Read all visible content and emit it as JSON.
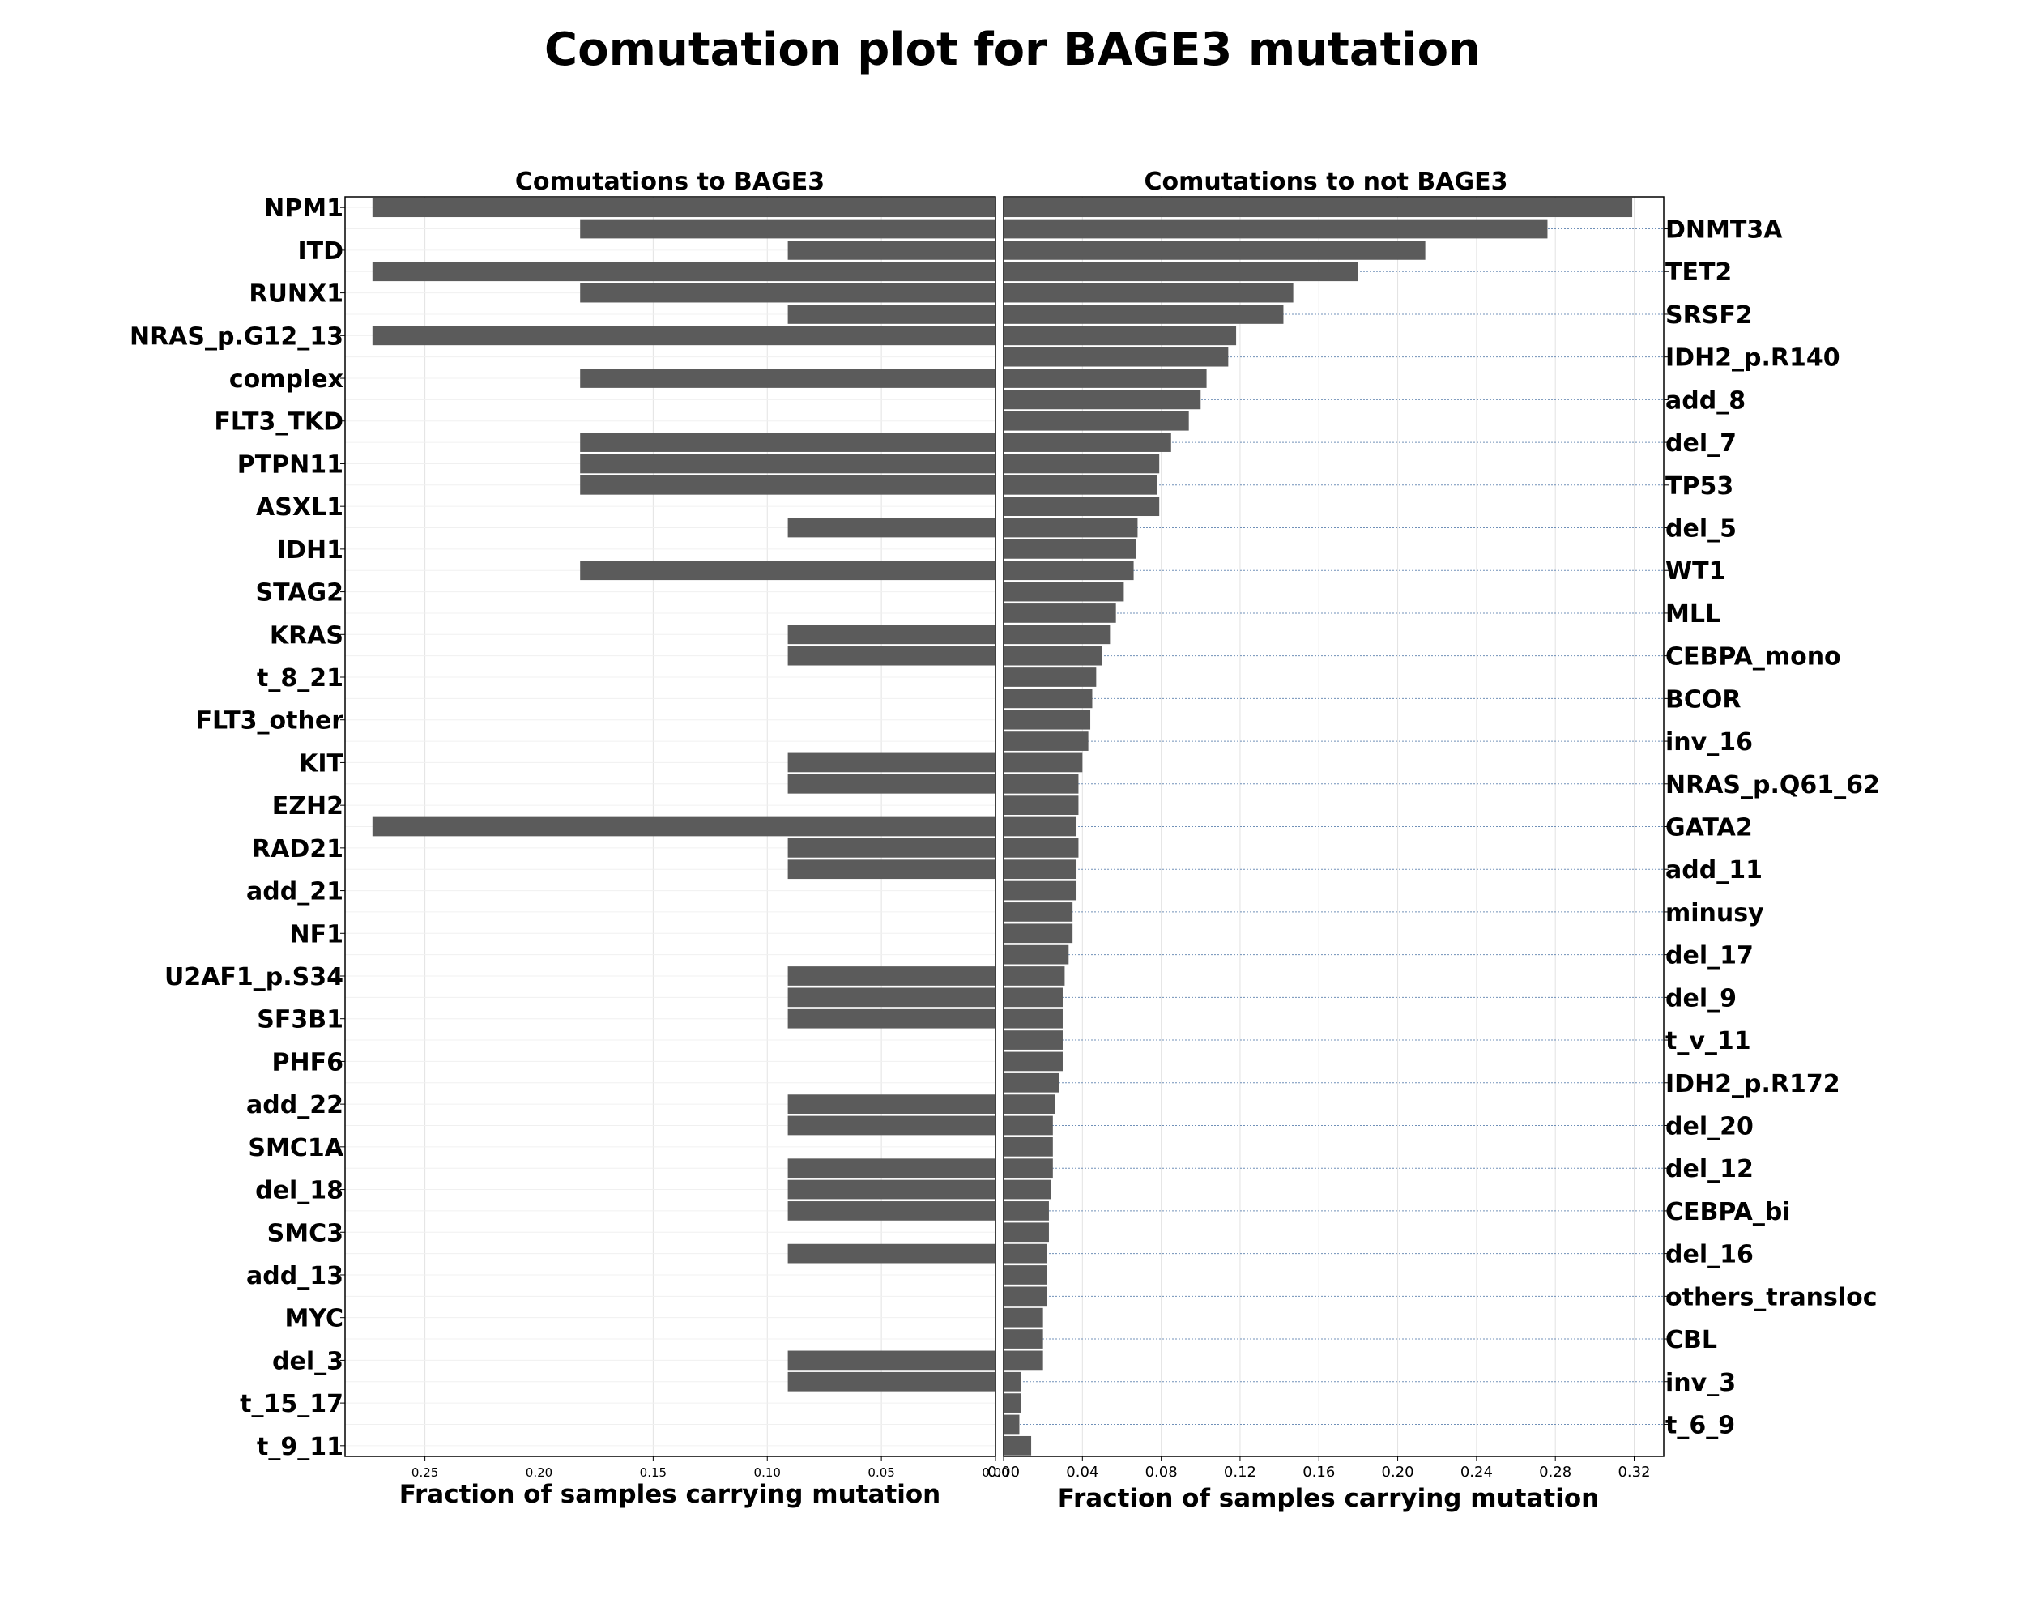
{
  "title": "Comutation plot for BAGE3 mutation",
  "chart_data": {
    "type": "bar",
    "orientation": "horizontal",
    "panels": [
      {
        "title": "Comutations to BAGE3",
        "xlabel": "Fraction of samples carrying mutation",
        "xlim": [
          0.285,
          0
        ],
        "xticks": [
          "0.25",
          "0.20",
          "0.15",
          "0.10",
          "0.05",
          "0.00"
        ],
        "grid": true
      },
      {
        "title": "Comutations to not BAGE3",
        "xlabel": "Fraction of samples carrying mutation",
        "xlim": [
          0,
          0.335
        ],
        "xticks": [
          "0.00",
          "0.04",
          "0.08",
          "0.12",
          "0.16",
          "0.20",
          "0.24",
          "0.28",
          "0.32"
        ],
        "grid": true
      }
    ],
    "categories": [
      "NPM1",
      "DNMT3A",
      "ITD",
      "TET2",
      "RUNX1",
      "SRSF2",
      "NRAS_p.G12_13",
      "IDH2_p.R140",
      "complex",
      "add_8",
      "FLT3_TKD",
      "del_7",
      "PTPN11",
      "TP53",
      "ASXL1",
      "del_5",
      "IDH1",
      "WT1",
      "STAG2",
      "MLL",
      "KRAS",
      "CEBPA_mono",
      "t_8_21",
      "BCOR",
      "FLT3_other",
      "inv_16",
      "KIT",
      "NRAS_p.Q61_62",
      "EZH2",
      "GATA2",
      "RAD21",
      "add_11",
      "add_21",
      "minusy",
      "NF1",
      "del_17",
      "U2AF1_p.S34",
      "del_9",
      "SF3B1",
      "t_v_11",
      "PHF6",
      "IDH2_p.R172",
      "add_22",
      "del_20",
      "SMC1A",
      "del_12",
      "del_18",
      "CEBPA_bi",
      "SMC3",
      "del_16",
      "add_13",
      "others_transloc",
      "MYC",
      "CBL",
      "del_3",
      "inv_3",
      "t_15_17",
      "t_6_9",
      "t_9_11"
    ],
    "left_axis_labels": [
      "NPM1",
      "ITD",
      "RUNX1",
      "NRAS_p.G12_13",
      "complex",
      "FLT3_TKD",
      "PTPN11",
      "ASXL1",
      "IDH1",
      "STAG2",
      "KRAS",
      "t_8_21",
      "FLT3_other",
      "KIT",
      "EZH2",
      "RAD21",
      "add_21",
      "NF1",
      "U2AF1_p.S34",
      "SF3B1",
      "PHF6",
      "add_22",
      "SMC1A",
      "del_18",
      "SMC3",
      "add_13",
      "MYC",
      "del_3",
      "t_15_17",
      "t_9_11"
    ],
    "right_axis_labels": [
      "DNMT3A",
      "TET2",
      "SRSF2",
      "IDH2_p.R140",
      "add_8",
      "del_7",
      "TP53",
      "del_5",
      "WT1",
      "MLL",
      "CEBPA_mono",
      "BCOR",
      "inv_16",
      "NRAS_p.Q61_62",
      "GATA2",
      "add_11",
      "minusy",
      "del_17",
      "del_9",
      "t_v_11",
      "IDH2_p.R172",
      "del_20",
      "del_12",
      "CEBPA_bi",
      "del_16",
      "others_transloc",
      "CBL",
      "inv_3",
      "t_6_9"
    ],
    "series": [
      {
        "name": "Comutations to BAGE3",
        "values": [
          0.273,
          0.182,
          0.091,
          0.273,
          0.182,
          0.091,
          0.273,
          0,
          0.182,
          0,
          0,
          0.182,
          0.182,
          0.182,
          0,
          0.091,
          0,
          0.182,
          0,
          0,
          0.091,
          0.091,
          0,
          0,
          0,
          0,
          0.091,
          0.091,
          0,
          0.273,
          0.091,
          0.091,
          0,
          0,
          0,
          0,
          0.091,
          0.091,
          0.091,
          0,
          0,
          0,
          0.091,
          0.091,
          0,
          0.091,
          0.091,
          0.091,
          0,
          0.091,
          0,
          0,
          0,
          0,
          0.091,
          0.091,
          0,
          0,
          0
        ]
      },
      {
        "name": "Comutations to not BAGE3",
        "values": [
          0.319,
          0.276,
          0.214,
          0.18,
          0.147,
          0.142,
          0.118,
          0.114,
          0.103,
          0.1,
          0.094,
          0.085,
          0.079,
          0.078,
          0.079,
          0.068,
          0.067,
          0.066,
          0.061,
          0.057,
          0.054,
          0.05,
          0.047,
          0.045,
          0.044,
          0.043,
          0.04,
          0.038,
          0.038,
          0.037,
          0.038,
          0.037,
          0.037,
          0.035,
          0.035,
          0.033,
          0.031,
          0.03,
          0.03,
          0.03,
          0.03,
          0.028,
          0.026,
          0.025,
          0.025,
          0.025,
          0.024,
          0.023,
          0.023,
          0.022,
          0.022,
          0.022,
          0.02,
          0.02,
          0.02,
          0.009,
          0.009,
          0.008,
          0.014
        ]
      }
    ]
  },
  "colors": {
    "bar": "#5b5b5b",
    "grid": "#e2e2e2",
    "guide": "#7090b8",
    "axis": "#000000"
  }
}
